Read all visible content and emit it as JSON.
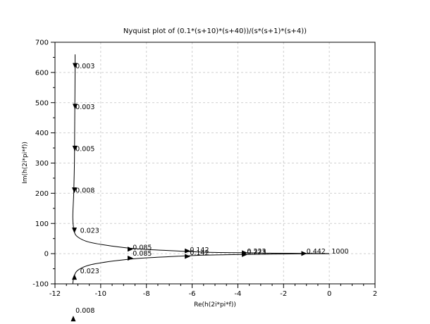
{
  "chart_data": {
    "type": "line",
    "title": "Nyquist plot of (0.1*(s+10)*(s+40))/(s*(s+1)*(s+4))",
    "xlabel": "Re(h(2i*pi*f))",
    "ylabel": "Im(h(2i*pi*f))",
    "xlim": [
      -12,
      2
    ],
    "ylim": [
      -100,
      700
    ],
    "xticks": [
      "-12",
      "-10",
      "-8",
      "-6",
      "-4",
      "-2",
      "0",
      "2"
    ],
    "yticks": [
      "-100",
      "0",
      "100",
      "200",
      "300",
      "400",
      "500",
      "600",
      "700"
    ],
    "grid": true,
    "legend": "none",
    "series": [
      {
        "x": [
          -11.12,
          -11.12,
          -11.13,
          -11.14,
          -11.15,
          -11.18,
          -11.22,
          -11.16,
          -11.0,
          -10.5,
          -9.5,
          -8.4,
          -7.0,
          -5.5,
          -4.0,
          -2.5,
          -1.0,
          -0.4,
          0.0
        ],
        "y": [
          660,
          600,
          500,
          400,
          300,
          200,
          120,
          75,
          55,
          38,
          25,
          16,
          10,
          5,
          3,
          1.5,
          0.5,
          0.2,
          0
        ]
      },
      {
        "x": [
          0.0,
          -0.4,
          -1.0,
          -2.5,
          -4.0,
          -5.5,
          -7.0,
          -8.4,
          -9.5,
          -10.5,
          -11.0,
          -11.16,
          -11.22,
          -11.2
        ],
        "y": [
          0,
          -0.2,
          -0.5,
          -1.5,
          -3,
          -5,
          -10,
          -16,
          -25,
          -38,
          -55,
          -75,
          -100,
          -120
        ]
      }
    ],
    "annotations": [
      {
        "text": "0.003",
        "x": -11.1,
        "y": 622
      },
      {
        "text": "0.003",
        "x": -11.1,
        "y": 487
      },
      {
        "text": "0.005",
        "x": -11.1,
        "y": 348
      },
      {
        "text": "0.008",
        "x": -11.1,
        "y": 210
      },
      {
        "text": "0.023",
        "x": -10.9,
        "y": 77
      },
      {
        "text": "0.085",
        "x": -8.6,
        "y": 21
      },
      {
        "text": "0.142",
        "x": -6.1,
        "y": 13
      },
      {
        "text": "0.223",
        "x": -3.6,
        "y": 8
      },
      {
        "text": "0.442",
        "x": -1.0,
        "y": 8
      },
      {
        "text": "1000",
        "x": 0.1,
        "y": 8
      },
      {
        "text": "0.085",
        "x": -8.6,
        "y": 1
      },
      {
        "text": "0.142",
        "x": -6.1,
        "y": 4
      },
      {
        "text": "0.223",
        "x": -3.6,
        "y": 5
      },
      {
        "text": "0.023",
        "x": -10.9,
        "y": -57
      },
      {
        "text": "0.008",
        "x": -11.1,
        "y": -187
      }
    ],
    "arrows": [
      {
        "x": -11.12,
        "y": 622,
        "dir": "down"
      },
      {
        "x": -11.12,
        "y": 487,
        "dir": "down"
      },
      {
        "x": -11.13,
        "y": 348,
        "dir": "down"
      },
      {
        "x": -11.15,
        "y": 210,
        "dir": "down"
      },
      {
        "x": -11.15,
        "y": 77,
        "dir": "down"
      },
      {
        "x": -8.7,
        "y": 15,
        "dir": "right"
      },
      {
        "x": -6.2,
        "y": 9,
        "dir": "right"
      },
      {
        "x": -3.7,
        "y": 3,
        "dir": "right"
      },
      {
        "x": -1.1,
        "y": 0.5,
        "dir": "right"
      },
      {
        "x": -8.7,
        "y": -15,
        "dir": "right"
      },
      {
        "x": -6.2,
        "y": -9,
        "dir": "right"
      },
      {
        "x": -3.7,
        "y": -3,
        "dir": "right"
      },
      {
        "x": -11.15,
        "y": -77,
        "dir": "up"
      },
      {
        "x": -11.2,
        "y": -215,
        "dir": "up"
      }
    ]
  }
}
